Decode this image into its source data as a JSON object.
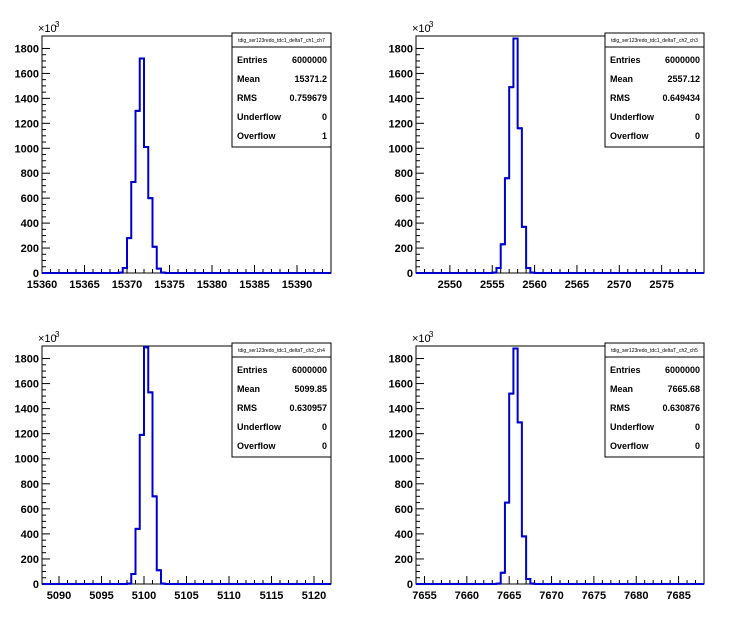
{
  "chart_data": [
    {
      "type": "histogram",
      "xlim": [
        15360,
        15394
      ],
      "ylim": [
        0,
        1800
      ],
      "x_ticks": [
        15360,
        15365,
        15370,
        15375,
        15380,
        15385,
        15390
      ],
      "y_ticks": [
        0,
        200,
        400,
        600,
        800,
        1000,
        1200,
        1400,
        1600,
        1800
      ],
      "y_exponent_base": "×10",
      "y_exponent": "3",
      "bin_width": 0.5,
      "bins": [
        {
          "x": 15369.0,
          "y": 3
        },
        {
          "x": 15369.5,
          "y": 40
        },
        {
          "x": 15370.0,
          "y": 280
        },
        {
          "x": 15370.5,
          "y": 730
        },
        {
          "x": 15371.0,
          "y": 1300
        },
        {
          "x": 15371.5,
          "y": 1720
        },
        {
          "x": 15372.0,
          "y": 1010
        },
        {
          "x": 15372.5,
          "y": 600
        },
        {
          "x": 15373.0,
          "y": 210
        },
        {
          "x": 15373.5,
          "y": 35
        },
        {
          "x": 15374.0,
          "y": 3
        }
      ],
      "line_color": "#0000cc",
      "stats": {
        "title": "tdig_ser123redo_tdc1_deltaT_ch1_ch7",
        "rows": [
          {
            "label": "Entries",
            "value": "6000000"
          },
          {
            "label": "Mean",
            "value": "15371.2"
          },
          {
            "label": "RMS",
            "value": "0.759679"
          },
          {
            "label": "Underflow",
            "value": "0"
          },
          {
            "label": "Overflow",
            "value": "1"
          }
        ]
      }
    },
    {
      "type": "histogram",
      "xlim": [
        2546,
        2580
      ],
      "ylim": [
        0,
        1800
      ],
      "x_ticks": [
        2550,
        2555,
        2560,
        2565,
        2570,
        2575
      ],
      "y_ticks": [
        0,
        200,
        400,
        600,
        800,
        1000,
        1200,
        1400,
        1600,
        1800
      ],
      "y_exponent_base": "×10",
      "y_exponent": "3",
      "bin_width": 0.5,
      "bins": [
        {
          "x": 2555.0,
          "y": 3
        },
        {
          "x": 2555.5,
          "y": 40
        },
        {
          "x": 2556.0,
          "y": 230
        },
        {
          "x": 2556.5,
          "y": 760
        },
        {
          "x": 2557.0,
          "y": 1490
        },
        {
          "x": 2557.5,
          "y": 1880
        },
        {
          "x": 2558.0,
          "y": 1160
        },
        {
          "x": 2558.5,
          "y": 370
        },
        {
          "x": 2559.0,
          "y": 40
        },
        {
          "x": 2559.5,
          "y": 3
        }
      ],
      "line_color": "#0000cc",
      "stats": {
        "title": "tdig_ser123redo_tdc1_deltaT_ch2_ch3",
        "rows": [
          {
            "label": "Entries",
            "value": "6000000"
          },
          {
            "label": "Mean",
            "value": "2557.12"
          },
          {
            "label": "RMS",
            "value": "0.649434"
          },
          {
            "label": "Underflow",
            "value": "0"
          },
          {
            "label": "Overflow",
            "value": "0"
          }
        ]
      }
    },
    {
      "type": "histogram",
      "xlim": [
        5088,
        5122
      ],
      "ylim": [
        0,
        1800
      ],
      "x_ticks": [
        5090,
        5095,
        5100,
        5105,
        5110,
        5115,
        5120
      ],
      "y_ticks": [
        0,
        200,
        400,
        600,
        800,
        1000,
        1200,
        1400,
        1600,
        1800
      ],
      "y_exponent_base": "×10",
      "y_exponent": "3",
      "bin_width": 0.5,
      "bins": [
        {
          "x": 5098.0,
          "y": 3
        },
        {
          "x": 5098.5,
          "y": 80
        },
        {
          "x": 5099.0,
          "y": 440
        },
        {
          "x": 5099.5,
          "y": 1190
        },
        {
          "x": 5100.0,
          "y": 1890
        },
        {
          "x": 5100.5,
          "y": 1530
        },
        {
          "x": 5101.0,
          "y": 700
        },
        {
          "x": 5101.5,
          "y": 110
        },
        {
          "x": 5102.0,
          "y": 3
        }
      ],
      "line_color": "#0000cc",
      "stats": {
        "title": "tdig_ser123redo_tdc1_deltaT_ch2_ch4",
        "rows": [
          {
            "label": "Entries",
            "value": "6000000"
          },
          {
            "label": "Mean",
            "value": "5099.85"
          },
          {
            "label": "RMS",
            "value": "0.630957"
          },
          {
            "label": "Underflow",
            "value": "0"
          },
          {
            "label": "Overflow",
            "value": "0"
          }
        ]
      }
    },
    {
      "type": "histogram",
      "xlim": [
        7654,
        7688
      ],
      "ylim": [
        0,
        1800
      ],
      "x_ticks": [
        7655,
        7660,
        7665,
        7670,
        7675,
        7680,
        7685
      ],
      "y_ticks": [
        0,
        200,
        400,
        600,
        800,
        1000,
        1200,
        1400,
        1600,
        1800
      ],
      "y_exponent_base": "×10",
      "y_exponent": "3",
      "bin_width": 0.5,
      "bins": [
        {
          "x": 7663.5,
          "y": 3
        },
        {
          "x": 7664.0,
          "y": 90
        },
        {
          "x": 7664.5,
          "y": 650
        },
        {
          "x": 7665.0,
          "y": 1520
        },
        {
          "x": 7665.5,
          "y": 1880
        },
        {
          "x": 7666.0,
          "y": 1290
        },
        {
          "x": 7666.5,
          "y": 380
        },
        {
          "x": 7667.0,
          "y": 40
        },
        {
          "x": 7667.5,
          "y": 3
        }
      ],
      "line_color": "#0000cc",
      "stats": {
        "title": "tdig_ser123redo_tdc1_deltaT_ch2_ch5",
        "rows": [
          {
            "label": "Entries",
            "value": "6000000"
          },
          {
            "label": "Mean",
            "value": "7665.68"
          },
          {
            "label": "RMS",
            "value": "0.630876"
          },
          {
            "label": "Underflow",
            "value": "0"
          },
          {
            "label": "Overflow",
            "value": "0"
          }
        ]
      }
    }
  ]
}
